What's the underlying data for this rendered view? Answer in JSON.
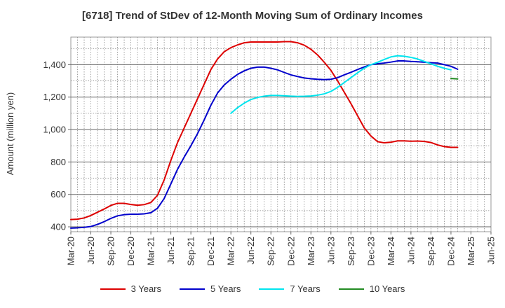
{
  "chart_data": {
    "type": "line",
    "title": "[6718]  Trend of StDev of 12-Month Moving Sum of Ordinary Incomes",
    "xlabel": "",
    "ylabel": "Amount (million yen)",
    "ylim": [
      370,
      1570
    ],
    "yticks": [
      400,
      600,
      800,
      1000,
      1200,
      1400
    ],
    "ytick_labels": [
      "400",
      "600",
      "800",
      "1,000",
      "1,200",
      "1,400"
    ],
    "x_categories": [
      "Mar-20",
      "Jun-20",
      "Sep-20",
      "Dec-20",
      "Mar-21",
      "Jun-21",
      "Sep-21",
      "Dec-21",
      "Mar-22",
      "Jun-22",
      "Sep-22",
      "Dec-22",
      "Mar-23",
      "Jun-23",
      "Sep-23",
      "Dec-23",
      "Mar-24",
      "Jun-24",
      "Sep-24",
      "Dec-24",
      "Mar-25",
      "Jun-25"
    ],
    "grid": true,
    "legend_position": "bottom",
    "series": [
      {
        "name": "3 Years",
        "color": "#dd0000",
        "start_index": 0,
        "values": [
          445,
          447,
          455,
          470,
          490,
          510,
          532,
          545,
          545,
          538,
          533,
          537,
          550,
          595,
          690,
          810,
          920,
          1010,
          1100,
          1190,
          1280,
          1370,
          1435,
          1480,
          1505,
          1522,
          1535,
          1540,
          1540,
          1540,
          1540,
          1540,
          1542,
          1542,
          1535,
          1520,
          1495,
          1460,
          1415,
          1365,
          1300,
          1230,
          1160,
          1085,
          1010,
          960,
          925,
          918,
          922,
          930,
          930,
          928,
          929,
          927,
          920,
          905,
          895,
          890,
          890
        ]
      },
      {
        "name": "5 Years",
        "color": "#0000cc",
        "start_index": 0,
        "values": [
          392,
          394,
          397,
          402,
          415,
          432,
          452,
          468,
          475,
          478,
          478,
          480,
          487,
          515,
          575,
          665,
          755,
          830,
          900,
          975,
          1060,
          1150,
          1225,
          1275,
          1310,
          1340,
          1362,
          1378,
          1385,
          1385,
          1378,
          1368,
          1352,
          1337,
          1327,
          1318,
          1313,
          1310,
          1308,
          1310,
          1320,
          1337,
          1353,
          1370,
          1386,
          1400,
          1406,
          1410,
          1416,
          1423,
          1423,
          1420,
          1418,
          1415,
          1412,
          1410,
          1400,
          1390,
          1372
        ]
      },
      {
        "name": "7 Years",
        "color": "#00e5ee",
        "start_index": 24,
        "values": [
          1100,
          1135,
          1163,
          1185,
          1198,
          1206,
          1210,
          1210,
          1208,
          1206,
          1204,
          1205,
          1207,
          1212,
          1220,
          1235,
          1260,
          1290,
          1320,
          1350,
          1378,
          1400,
          1415,
          1432,
          1448,
          1455,
          1452,
          1445,
          1435,
          1420,
          1405,
          1390,
          1378,
          1368
        ]
      },
      {
        "name": "10 Years",
        "color": "#228b22",
        "start_index": 57,
        "values": [
          1315,
          1312
        ]
      }
    ]
  }
}
